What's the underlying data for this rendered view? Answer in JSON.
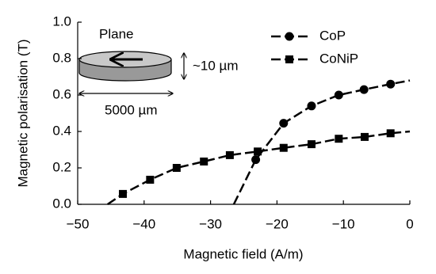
{
  "chart_data": {
    "type": "line",
    "xlabel": "Magnetic field (A/m)",
    "ylabel": "Magnetic polarisation (T)",
    "xlim": [
      -50,
      0
    ],
    "ylim": [
      0,
      1.0
    ],
    "xticks": [
      {
        "value": -50,
        "label": "−50"
      },
      {
        "value": -40,
        "label": "−40"
      },
      {
        "value": -30,
        "label": "−30"
      },
      {
        "value": -20,
        "label": "−20"
      },
      {
        "value": -10,
        "label": "−10"
      },
      0
    ],
    "yticks": [
      {
        "value": 0,
        "label": "0.0"
      },
      0.2,
      0.4,
      0.6,
      0.8,
      {
        "value": 1.0,
        "label": "1.0"
      }
    ],
    "series": [
      {
        "name": "CoP",
        "color": "#000000",
        "marker": "circle",
        "x": [
          -26.5,
          -23.2,
          -19.0,
          -14.8,
          -10.7,
          -6.9,
          -2.9,
          0
        ],
        "values": [
          0,
          0.245,
          0.445,
          0.54,
          0.6,
          0.63,
          0.66,
          0.68
        ]
      },
      {
        "name": "CoNiP",
        "color": "#000000",
        "marker": "square",
        "x": [
          -45.5,
          -43.2,
          -39.1,
          -35.1,
          -31.0,
          -27.1,
          -22.9,
          -19.0,
          -14.8,
          -10.7,
          -6.8,
          -2.9,
          0
        ],
        "values": [
          0,
          0.057,
          0.135,
          0.2,
          0.235,
          0.27,
          0.29,
          0.31,
          0.33,
          0.36,
          0.37,
          0.39,
          0.4
        ]
      }
    ],
    "annotations": [
      "Plane",
      "~10 µm",
      "5000 µm"
    ]
  }
}
